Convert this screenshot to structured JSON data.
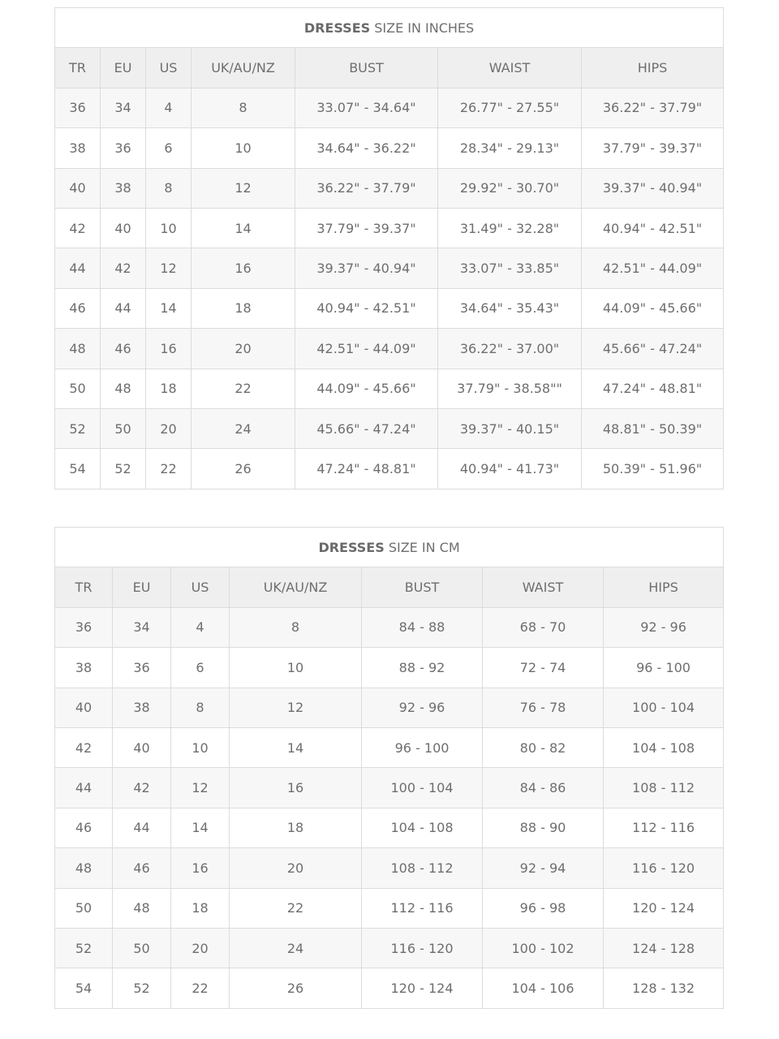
{
  "tables": [
    {
      "title_bold": "DRESSES",
      "title_rest": " SIZE IN INCHES",
      "headers": [
        "TR",
        "EU",
        "US",
        "UK/AU/NZ",
        "BUST",
        "WAIST",
        "HIPS"
      ],
      "rows": [
        [
          "36",
          "34",
          "4",
          "8",
          "33.07\" - 34.64\"",
          "26.77\" - 27.55\"",
          "36.22\" - 37.79\""
        ],
        [
          "38",
          "36",
          "6",
          "10",
          "34.64\" - 36.22\"",
          "28.34\" - 29.13\"",
          "37.79\" - 39.37\""
        ],
        [
          "40",
          "38",
          "8",
          "12",
          "36.22\" - 37.79\"",
          "29.92\" - 30.70\"",
          "39.37\" - 40.94\""
        ],
        [
          "42",
          "40",
          "10",
          "14",
          "37.79\" - 39.37\"",
          "31.49\" - 32.28\"",
          "40.94\" - 42.51\""
        ],
        [
          "44",
          "42",
          "12",
          "16",
          "39.37\" - 40.94\"",
          "33.07\" - 33.85\"",
          "42.51\" - 44.09\""
        ],
        [
          "46",
          "44",
          "14",
          "18",
          "40.94\" - 42.51\"",
          "34.64\" - 35.43\"",
          "44.09\" - 45.66\""
        ],
        [
          "48",
          "46",
          "16",
          "20",
          "42.51\" - 44.09\"",
          "36.22\" - 37.00\"",
          "45.66\" - 47.24\""
        ],
        [
          "50",
          "48",
          "18",
          "22",
          "44.09\" - 45.66\"",
          "37.79\" - 38.58\"\"",
          "47.24\" - 48.81\""
        ],
        [
          "52",
          "50",
          "20",
          "24",
          "45.66\" - 47.24\"",
          "39.37\" - 40.15\"",
          "48.81\" - 50.39\""
        ],
        [
          "54",
          "52",
          "22",
          "26",
          "47.24\" - 48.81\"",
          "40.94\" - 41.73\"",
          "50.39\" - 51.96\""
        ]
      ]
    },
    {
      "title_bold": "DRESSES",
      "title_rest": " SIZE IN CM",
      "headers": [
        "TR",
        "EU",
        "US",
        "UK/AU/NZ",
        "BUST",
        "WAIST",
        "HIPS"
      ],
      "rows": [
        [
          "36",
          "34",
          "4",
          "8",
          "84 - 88",
          "68 - 70",
          "92 - 96"
        ],
        [
          "38",
          "36",
          "6",
          "10",
          "88 - 92",
          "72 - 74",
          "96 - 100"
        ],
        [
          "40",
          "38",
          "8",
          "12",
          "92 - 96",
          "76 - 78",
          "100 - 104"
        ],
        [
          "42",
          "40",
          "10",
          "14",
          "96 - 100",
          "80 - 82",
          "104 - 108"
        ],
        [
          "44",
          "42",
          "12",
          "16",
          "100 - 104",
          "84 - 86",
          "108 - 112"
        ],
        [
          "46",
          "44",
          "14",
          "18",
          "104 - 108",
          "88 - 90",
          "112 - 116"
        ],
        [
          "48",
          "46",
          "16",
          "20",
          "108 - 112",
          "92 - 94",
          "116 - 120"
        ],
        [
          "50",
          "48",
          "18",
          "22",
          "112 - 116",
          "96 - 98",
          "120 - 124"
        ],
        [
          "52",
          "50",
          "20",
          "24",
          "116 - 120",
          "100 - 102",
          "124 - 128"
        ],
        [
          "54",
          "52",
          "22",
          "26",
          "120 - 124",
          "104 - 106",
          "128 - 132"
        ]
      ]
    }
  ]
}
